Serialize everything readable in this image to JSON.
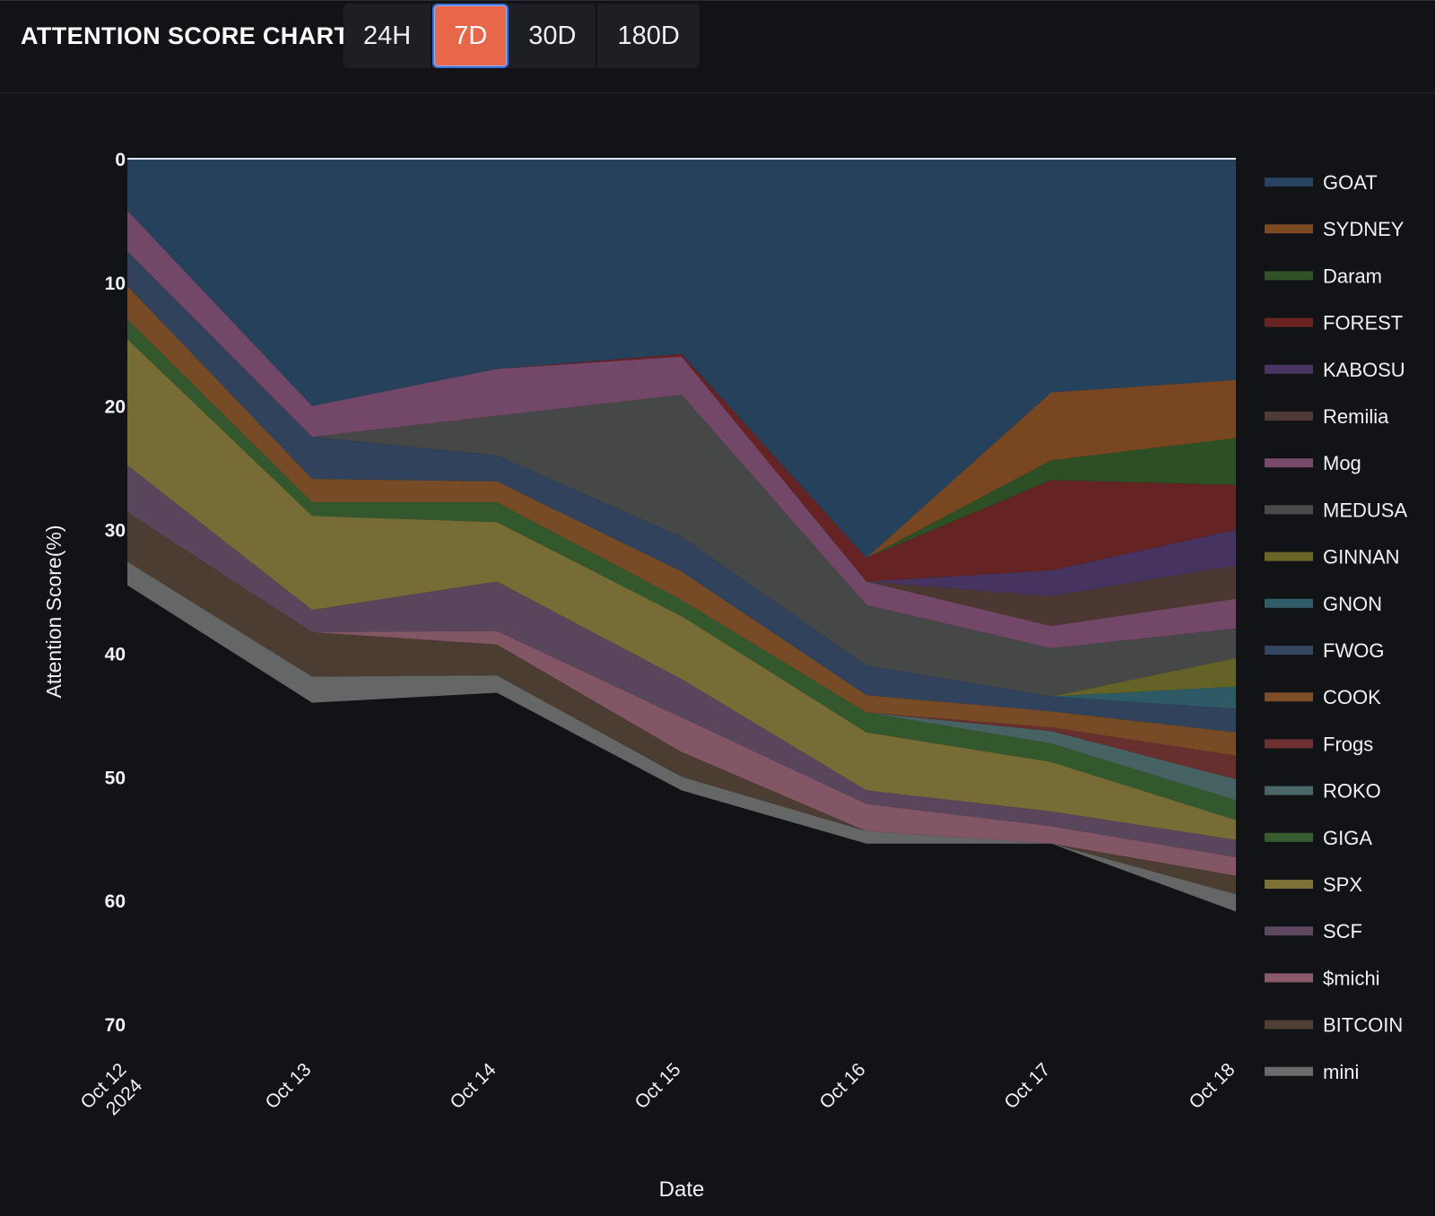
{
  "header": {
    "title": "ATTENTION SCORE CHART",
    "tabs": [
      {
        "label": "24H",
        "active": false
      },
      {
        "label": "7D",
        "active": true
      },
      {
        "label": "30D",
        "active": false
      },
      {
        "label": "180D",
        "active": false
      }
    ]
  },
  "colors": {
    "background": "#121317",
    "accent": "#e8674a",
    "active_tab_border": "#3a6fd8"
  },
  "chart_data": {
    "type": "area",
    "stacked": true,
    "xlabel": "Date",
    "ylabel": "Attention Score(%)",
    "ylim": [
      0,
      70
    ],
    "y_reversed": true,
    "yticks": [
      0,
      10,
      20,
      30,
      40,
      50,
      60,
      70
    ],
    "x": [
      "Oct 12\n2024",
      "Oct 13",
      "Oct 14",
      "Oct 15",
      "Oct 16",
      "Oct 17",
      "Oct 18"
    ],
    "legend_position": "right",
    "series": [
      {
        "name": "GOAT",
        "color": "#27435f",
        "values": [
          4.2,
          20.0,
          17.0,
          15.8,
          32.3,
          18.9,
          17.9
        ]
      },
      {
        "name": "SYDNEY",
        "color": "#7e4a22",
        "values": [
          0,
          0,
          0,
          0,
          0,
          5.5,
          4.7
        ]
      },
      {
        "name": "Daram",
        "color": "#2f5226",
        "values": [
          0,
          0,
          0,
          0,
          0,
          1.6,
          3.8
        ]
      },
      {
        "name": "FOREST",
        "color": "#6a2424",
        "values": [
          0,
          0,
          0,
          0.2,
          1.9,
          7.3,
          3.6
        ]
      },
      {
        "name": "KABOSU",
        "color": "#4a3563",
        "values": [
          0,
          0,
          0,
          0,
          0,
          2.1,
          2.9
        ]
      },
      {
        "name": "Remilia",
        "color": "#4f3a34",
        "values": [
          0,
          0,
          0,
          0,
          0,
          2.4,
          2.7
        ]
      },
      {
        "name": "Mog",
        "color": "#794a6b",
        "values": [
          3.3,
          2.5,
          3.8,
          3.1,
          1.9,
          1.8,
          2.4
        ]
      },
      {
        "name": "MEDUSA",
        "color": "#4a4a4a",
        "values": [
          0,
          0,
          3.2,
          11.5,
          4.9,
          3.9,
          2.4
        ]
      },
      {
        "name": "GINNAN",
        "color": "#6a6628",
        "values": [
          0,
          0,
          0,
          0,
          0,
          0,
          2.3
        ]
      },
      {
        "name": "GNON",
        "color": "#2f5e68",
        "values": [
          0,
          0,
          0,
          0,
          0,
          0,
          1.8
        ]
      },
      {
        "name": "FWOG",
        "color": "#344560",
        "values": [
          2.8,
          3.4,
          2.1,
          2.8,
          2.4,
          1.2,
          1.9
        ]
      },
      {
        "name": "COOK",
        "color": "#7d4e26",
        "values": [
          2.7,
          1.9,
          1.7,
          2.3,
          1.4,
          1.3,
          1.9
        ]
      },
      {
        "name": "Frogs",
        "color": "#6e3030",
        "values": [
          0,
          0,
          0,
          0,
          0,
          0.3,
          1.9
        ]
      },
      {
        "name": "ROKO",
        "color": "#4a6666",
        "values": [
          0,
          0,
          0,
          0,
          0,
          1.0,
          1.7
        ]
      },
      {
        "name": "GIGA",
        "color": "#375c2f",
        "values": [
          1.6,
          1.1,
          1.6,
          1.3,
          1.6,
          1.5,
          1.6
        ]
      },
      {
        "name": "SPX",
        "color": "#7e7138",
        "values": [
          10.2,
          7.6,
          4.8,
          5.1,
          4.7,
          4.0,
          1.6
        ]
      },
      {
        "name": "SCF",
        "color": "#5e4860",
        "values": [
          3.8,
          1.8,
          4.0,
          3.1,
          1.1,
          1.2,
          1.4
        ]
      },
      {
        "name": "$michi",
        "color": "#8a5a6a",
        "values": [
          0,
          0,
          1.1,
          2.8,
          2.2,
          1.4,
          1.5
        ]
      },
      {
        "name": "BITCOIN",
        "color": "#503f35",
        "values": [
          4.0,
          3.6,
          2.5,
          2.0,
          0,
          0,
          1.5
        ]
      },
      {
        "name": "mini",
        "color": "#6a6a6a",
        "values": [
          1.9,
          2.1,
          1.4,
          1.1,
          1.0,
          0,
          1.4
        ]
      }
    ]
  }
}
